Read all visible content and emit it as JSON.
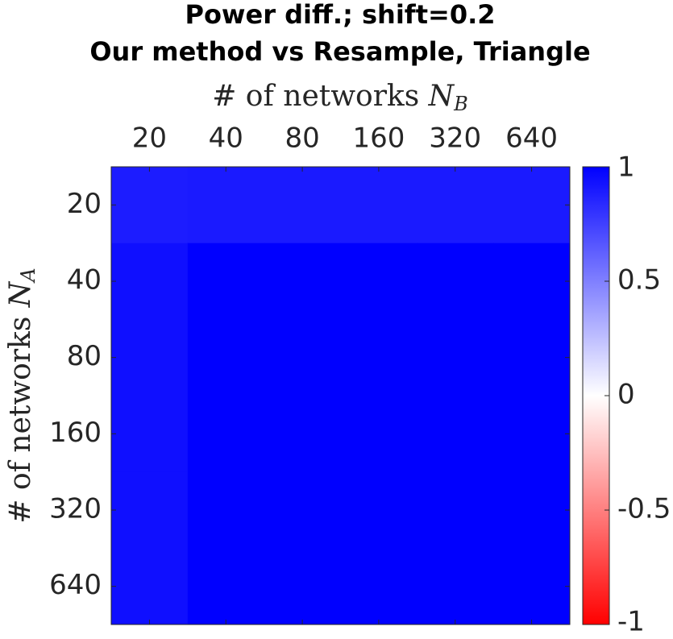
{
  "chart_data": {
    "type": "heatmap",
    "title": [
      "Power diff.; shift=0.2",
      "Our method vs Resample, Triangle"
    ],
    "xlabel": "# of networks",
    "xlabel_var": "N",
    "xlabel_sub": "B",
    "ylabel": "# of networks",
    "ylabel_var": "N",
    "ylabel_sub": "A",
    "x": [
      "20",
      "40",
      "80",
      "160",
      "320",
      "640"
    ],
    "y": [
      "20",
      "40",
      "80",
      "160",
      "320",
      "640"
    ],
    "z": [
      [
        0.89,
        0.9,
        0.9,
        0.9,
        0.9,
        0.9
      ],
      [
        0.94,
        1,
        1,
        1,
        1,
        1
      ],
      [
        0.94,
        1,
        1,
        1,
        1,
        1
      ],
      [
        0.94,
        1,
        1,
        1,
        1,
        1
      ],
      [
        0.94,
        1,
        1,
        1,
        1,
        1
      ],
      [
        0.94,
        1,
        1,
        1,
        1,
        1
      ]
    ],
    "colormap": [
      "#ff0000",
      "#ffffff",
      "#0000ff"
    ],
    "clim": [
      -1,
      1
    ],
    "cticks": [
      -1,
      -0.5,
      0,
      0.5,
      1
    ]
  }
}
